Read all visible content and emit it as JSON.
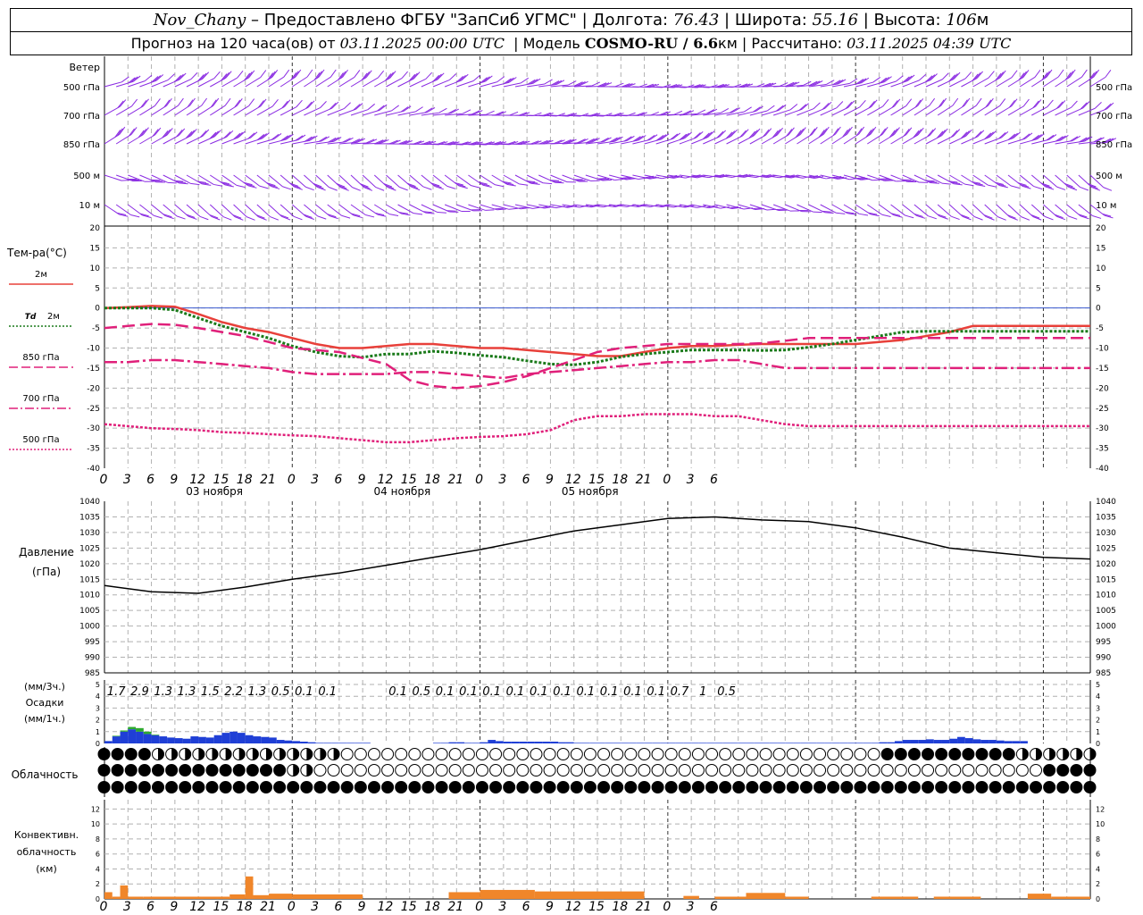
{
  "header": {
    "line1": {
      "station": "Nov_Chany",
      "provider": " – Предоставлено ФГБУ \"ЗапСиб УГМС\" | Долгота: ",
      "lon": "76.43",
      "lat_label": " | Широта: ",
      "lat": "55.16",
      "alt_label": " | Высота: ",
      "alt": "106",
      "alt_unit": "м"
    },
    "line2": {
      "prefix": "Прогноз на 120 часа(ов) от ",
      "start": "03.11.2025 00:00 UTC",
      "model_label": "  | Модель ",
      "model": "COSMO-RU / 6.6",
      "model_unit": "км",
      "calc_label": " | Рассчитано: ",
      "calc": "03.11.2025 04:39 UTC"
    }
  },
  "wind_panel": {
    "title": "Ветер",
    "levels": [
      "500 гПа",
      "700 гПа",
      "850 гПа",
      "500 м",
      "10  м"
    ],
    "barb_color": "#8a2be2"
  },
  "temp_panel": {
    "title": "Тем-ра(°C)",
    "legend": [
      {
        "label": "2м",
        "prefix": "",
        "color": "#e8403a",
        "style": "solid"
      },
      {
        "label": "2м",
        "prefix": "Td",
        "color": "#1a7a1a",
        "style": "dotted"
      },
      {
        "label": "850 гПа",
        "prefix": "",
        "color": "#e0207a",
        "style": "dash"
      },
      {
        "label": "700 гПа",
        "prefix": "",
        "color": "#e0207a",
        "style": "dashdot"
      },
      {
        "label": "500 гПа",
        "prefix": "",
        "color": "#e0207a",
        "style": "dotted"
      }
    ]
  },
  "pressure_panel": {
    "title1": "Давление",
    "title2": "(гПа)"
  },
  "precip_panel": {
    "title1": "(мм/3ч.)",
    "title2": "Осадки",
    "title3": "(мм/1ч.)",
    "totals3h": [
      "1.7",
      "2.9",
      "1.3",
      "1.3",
      "1.5",
      "2.2",
      "1.3",
      "0.5",
      "0.1",
      "0.1",
      "",
      "",
      "0.1",
      "0.5",
      "0.1",
      "0.1",
      "0.1",
      "0.1",
      "0.1",
      "0.1",
      "0.1",
      "0.1",
      "0.1",
      "0.1",
      "0.7",
      "1",
      "0.5"
    ]
  },
  "cloud_panel": {
    "title": "Облачность"
  },
  "conv_panel": {
    "title1": "Конвективн.",
    "title2": "облачность",
    "title3": "(км)"
  },
  "time_axis": {
    "hour_labels": [
      "0",
      "3",
      "6",
      "9",
      "12",
      "15",
      "18",
      "21",
      "0",
      "3",
      "6",
      "9",
      "12",
      "15",
      "18",
      "21",
      "0",
      "3",
      "6",
      "9",
      "12",
      "15",
      "18",
      "21",
      "0",
      "3",
      "6"
    ],
    "day_labels": [
      "03 ноября",
      "04 ноября",
      "05 ноября"
    ]
  },
  "chart_data": [
    {
      "type": "line",
      "title": "Тем-ра(°C)",
      "x_hours": [
        0,
        3,
        6,
        9,
        12,
        15,
        18,
        21,
        24,
        27,
        30,
        33,
        36,
        39,
        42,
        45,
        48,
        51,
        54,
        57,
        60,
        63,
        66,
        69,
        72,
        75,
        78,
        81,
        84,
        87,
        90,
        93,
        96,
        99,
        102,
        105,
        108,
        111,
        114,
        117,
        120,
        123,
        126
      ],
      "ylim": [
        -40,
        20
      ],
      "yticks": [
        20,
        15,
        10,
        5,
        0,
        -5,
        -10,
        -15,
        -20,
        -25,
        -30,
        -35,
        -40
      ],
      "series": [
        {
          "name": "2м",
          "values": [
            0,
            0.2,
            0.5,
            0.3,
            -1.5,
            -3.5,
            -5,
            -6,
            -7.5,
            -9,
            -10,
            -10,
            -9.5,
            -9,
            -9,
            -9.5,
            -10,
            -10,
            -10.5,
            -11,
            -11.5,
            -12,
            -12,
            -11,
            -10,
            -9.5,
            -9.5,
            -9.2,
            -9,
            -9,
            -9,
            -9,
            -9,
            -8.5,
            -8,
            -7,
            -6,
            -4.5,
            -4.5,
            -4.5,
            -4.5,
            -4.5,
            -4.5
          ]
        },
        {
          "name": "Td 2м",
          "values": [
            0,
            0,
            0,
            -0.5,
            -2.5,
            -4.5,
            -6,
            -7.5,
            -9.5,
            -11,
            -12,
            -12.3,
            -11.5,
            -11.5,
            -10.8,
            -11.2,
            -11.8,
            -12.3,
            -13.2,
            -14,
            -14.2,
            -13.5,
            -12.2,
            -11.5,
            -11,
            -10.5,
            -10.5,
            -10.5,
            -10.6,
            -10.5,
            -9.8,
            -9,
            -8,
            -7,
            -6,
            -5.8,
            -5.8,
            -5.8,
            -5.8,
            -5.8,
            -5.8,
            -5.8,
            -5.8
          ]
        },
        {
          "name": "850 гПа",
          "values": [
            -5,
            -4.5,
            -4,
            -4.2,
            -5,
            -6,
            -7,
            -8.5,
            -10,
            -10.5,
            -11,
            -12.5,
            -14,
            -18,
            -19.5,
            -20,
            -19.5,
            -18.5,
            -17,
            -15,
            -13,
            -11,
            -10,
            -9.5,
            -9,
            -9,
            -9,
            -9,
            -8.8,
            -8.2,
            -7.5,
            -7.5,
            -7.5,
            -7.5,
            -7.5,
            -7.5,
            -7.5,
            -7.5,
            -7.5,
            -7.5,
            -7.5,
            -7.5,
            -7.5
          ]
        },
        {
          "name": "700 гПа",
          "values": [
            -13.5,
            -13.5,
            -13,
            -13,
            -13.5,
            -14,
            -14.5,
            -15,
            -16,
            -16.5,
            -16.5,
            -16.5,
            -16.5,
            -16,
            -16,
            -16.5,
            -17,
            -17.5,
            -16.5,
            -16,
            -15.5,
            -15,
            -14.5,
            -14,
            -13.5,
            -13.5,
            -13,
            -13,
            -14,
            -15,
            -15,
            -15,
            -15,
            -15,
            -15,
            -15,
            -15,
            -15,
            -15,
            -15,
            -15,
            -15,
            -15
          ]
        },
        {
          "name": "500 гПа",
          "values": [
            -29,
            -29.5,
            -30,
            -30.2,
            -30.5,
            -31,
            -31.2,
            -31.5,
            -31.8,
            -32,
            -32.5,
            -33,
            -33.5,
            -33.5,
            -33,
            -32.5,
            -32.2,
            -32,
            -31.5,
            -30.5,
            -28,
            -27,
            -27,
            -26.5,
            -26.5,
            -26.5,
            -27,
            -27,
            -28,
            -29,
            -29.5,
            -29.5,
            -29.5,
            -29.5,
            -29.5,
            -29.5,
            -29.5,
            -29.5,
            -29.5,
            -29.5,
            -29.5,
            -29.5,
            -29.5
          ]
        }
      ]
    },
    {
      "type": "line",
      "title": "Давление (гПа)",
      "x_hours": [
        0,
        6,
        12,
        18,
        24,
        30,
        36,
        42,
        48,
        54,
        60,
        66,
        72,
        78,
        84,
        90,
        96,
        102,
        108,
        114,
        120,
        126
      ],
      "ylim": [
        985,
        1040
      ],
      "yticks": [
        1040,
        1035,
        1030,
        1025,
        1020,
        1015,
        1010,
        1005,
        1000,
        995,
        990,
        985
      ],
      "series": [
        {
          "name": "Давление",
          "values": [
            1013,
            1011,
            1010.5,
            1012.5,
            1015,
            1017,
            1019.5,
            1022,
            1024.5,
            1027.5,
            1030.5,
            1032.5,
            1034.5,
            1035,
            1034,
            1033.5,
            1031.5,
            1028.5,
            1025,
            1023.5,
            1022,
            1021.5
          ]
        }
      ]
    },
    {
      "type": "bar",
      "title": "Осадки (мм/1ч.)",
      "ylim": [
        0,
        5
      ],
      "yticks": [
        5,
        4,
        3,
        2,
        1,
        0
      ],
      "values_1h": [
        0.2,
        0.6,
        1.0,
        1.2,
        1.0,
        0.8,
        0.7,
        0.6,
        0.5,
        0.45,
        0.4,
        0.6,
        0.55,
        0.5,
        0.7,
        0.9,
        1.0,
        0.9,
        0.7,
        0.6,
        0.55,
        0.5,
        0.3,
        0.25,
        0.2,
        0.15,
        0.1,
        0.05,
        0.05,
        0.05,
        0.05,
        0.05,
        0.05,
        0.05,
        0,
        0,
        0,
        0,
        0,
        0,
        0,
        0,
        0.05,
        0.05,
        0.1,
        0.1,
        0.05,
        0.05,
        0.1,
        0.3,
        0.2,
        0.15,
        0.15,
        0.15,
        0.15,
        0.15,
        0.15,
        0.15,
        0.1,
        0.1,
        0.05,
        0.05,
        0.05,
        0.05,
        0.05,
        0.05,
        0.05,
        0.05,
        0.05,
        0.05,
        0.05,
        0.05,
        0.05,
        0.05,
        0.05,
        0.05,
        0.05,
        0.05,
        0.05,
        0.05,
        0.05,
        0.05,
        0.05,
        0.05,
        0.05,
        0.05,
        0.05,
        0.05,
        0.05,
        0.05,
        0.05,
        0.05,
        0.05,
        0.05,
        0.05,
        0.05,
        0.05,
        0.05,
        0.05,
        0.1,
        0.1,
        0.2,
        0.3,
        0.3,
        0.3,
        0.35,
        0.3,
        0.3,
        0.4,
        0.55,
        0.45,
        0.35,
        0.3,
        0.3,
        0.25,
        0.2,
        0.2,
        0.2
      ],
      "conv_green_1h": [
        0.05,
        0.1,
        0.2,
        0.3,
        0.2,
        0.05
      ]
    },
    {
      "type": "bar",
      "title": "Конвективн. облачность (км)",
      "ylim": [
        0,
        13
      ],
      "yticks": [
        12,
        10,
        8,
        6,
        4,
        2,
        0
      ]
    }
  ]
}
